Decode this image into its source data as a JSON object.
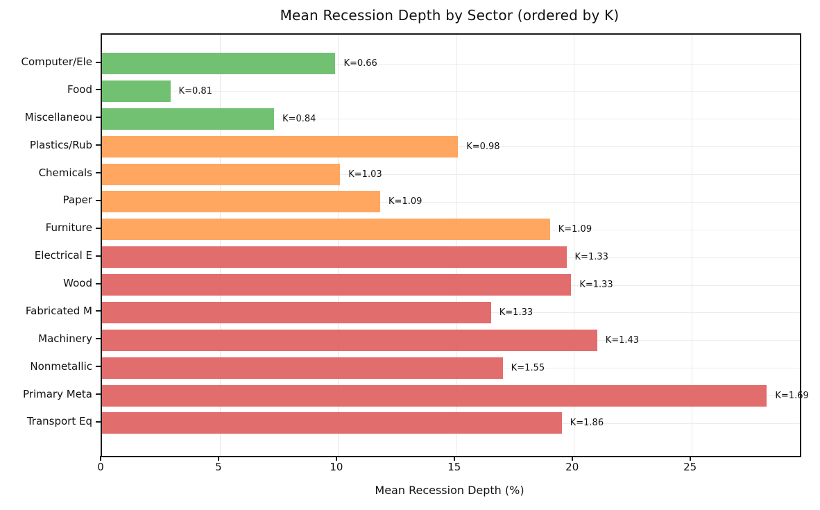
{
  "chart_data": {
    "type": "bar",
    "orientation": "horizontal",
    "title": "Mean Recession Depth by Sector (ordered by K)",
    "xlabel": "Mean Recession Depth (%)",
    "ylabel": "",
    "xlim": [
      0,
      29.6
    ],
    "x_ticks": [
      0,
      5,
      10,
      15,
      20,
      25
    ],
    "grid": true,
    "legend": false,
    "categories": [
      "Computer/Ele",
      "Food",
      "Miscellaneou",
      "Plastics/Rub",
      "Chemicals",
      "Paper",
      "Furniture",
      "Electrical E",
      "Wood",
      "Fabricated M",
      "Machinery",
      "Nonmetallic",
      "Primary Meta",
      "Transport Eq"
    ],
    "values": [
      9.9,
      2.9,
      7.3,
      15.1,
      10.1,
      11.8,
      19.0,
      19.7,
      19.9,
      16.5,
      21.0,
      17.0,
      28.2,
      19.5
    ],
    "k_values": [
      0.66,
      0.81,
      0.84,
      0.98,
      1.03,
      1.09,
      1.09,
      1.33,
      1.33,
      1.33,
      1.43,
      1.55,
      1.69,
      1.86
    ],
    "annotations": [
      "K=0.66",
      "K=0.81",
      "K=0.84",
      "K=0.98",
      "K=1.03",
      "K=1.09",
      "K=1.09",
      "K=1.33",
      "K=1.33",
      "K=1.33",
      "K=1.43",
      "K=1.55",
      "K=1.69",
      "K=1.86"
    ],
    "bar_groups": [
      "green",
      "green",
      "green",
      "orange",
      "orange",
      "orange",
      "orange",
      "red",
      "red",
      "red",
      "red",
      "red",
      "red",
      "red"
    ],
    "colors": {
      "green": "#6abe6a",
      "orange": "#ffa257",
      "red": "#e06565",
      "spine": "#1a1a1a",
      "grid": "#e9e9e9"
    }
  }
}
